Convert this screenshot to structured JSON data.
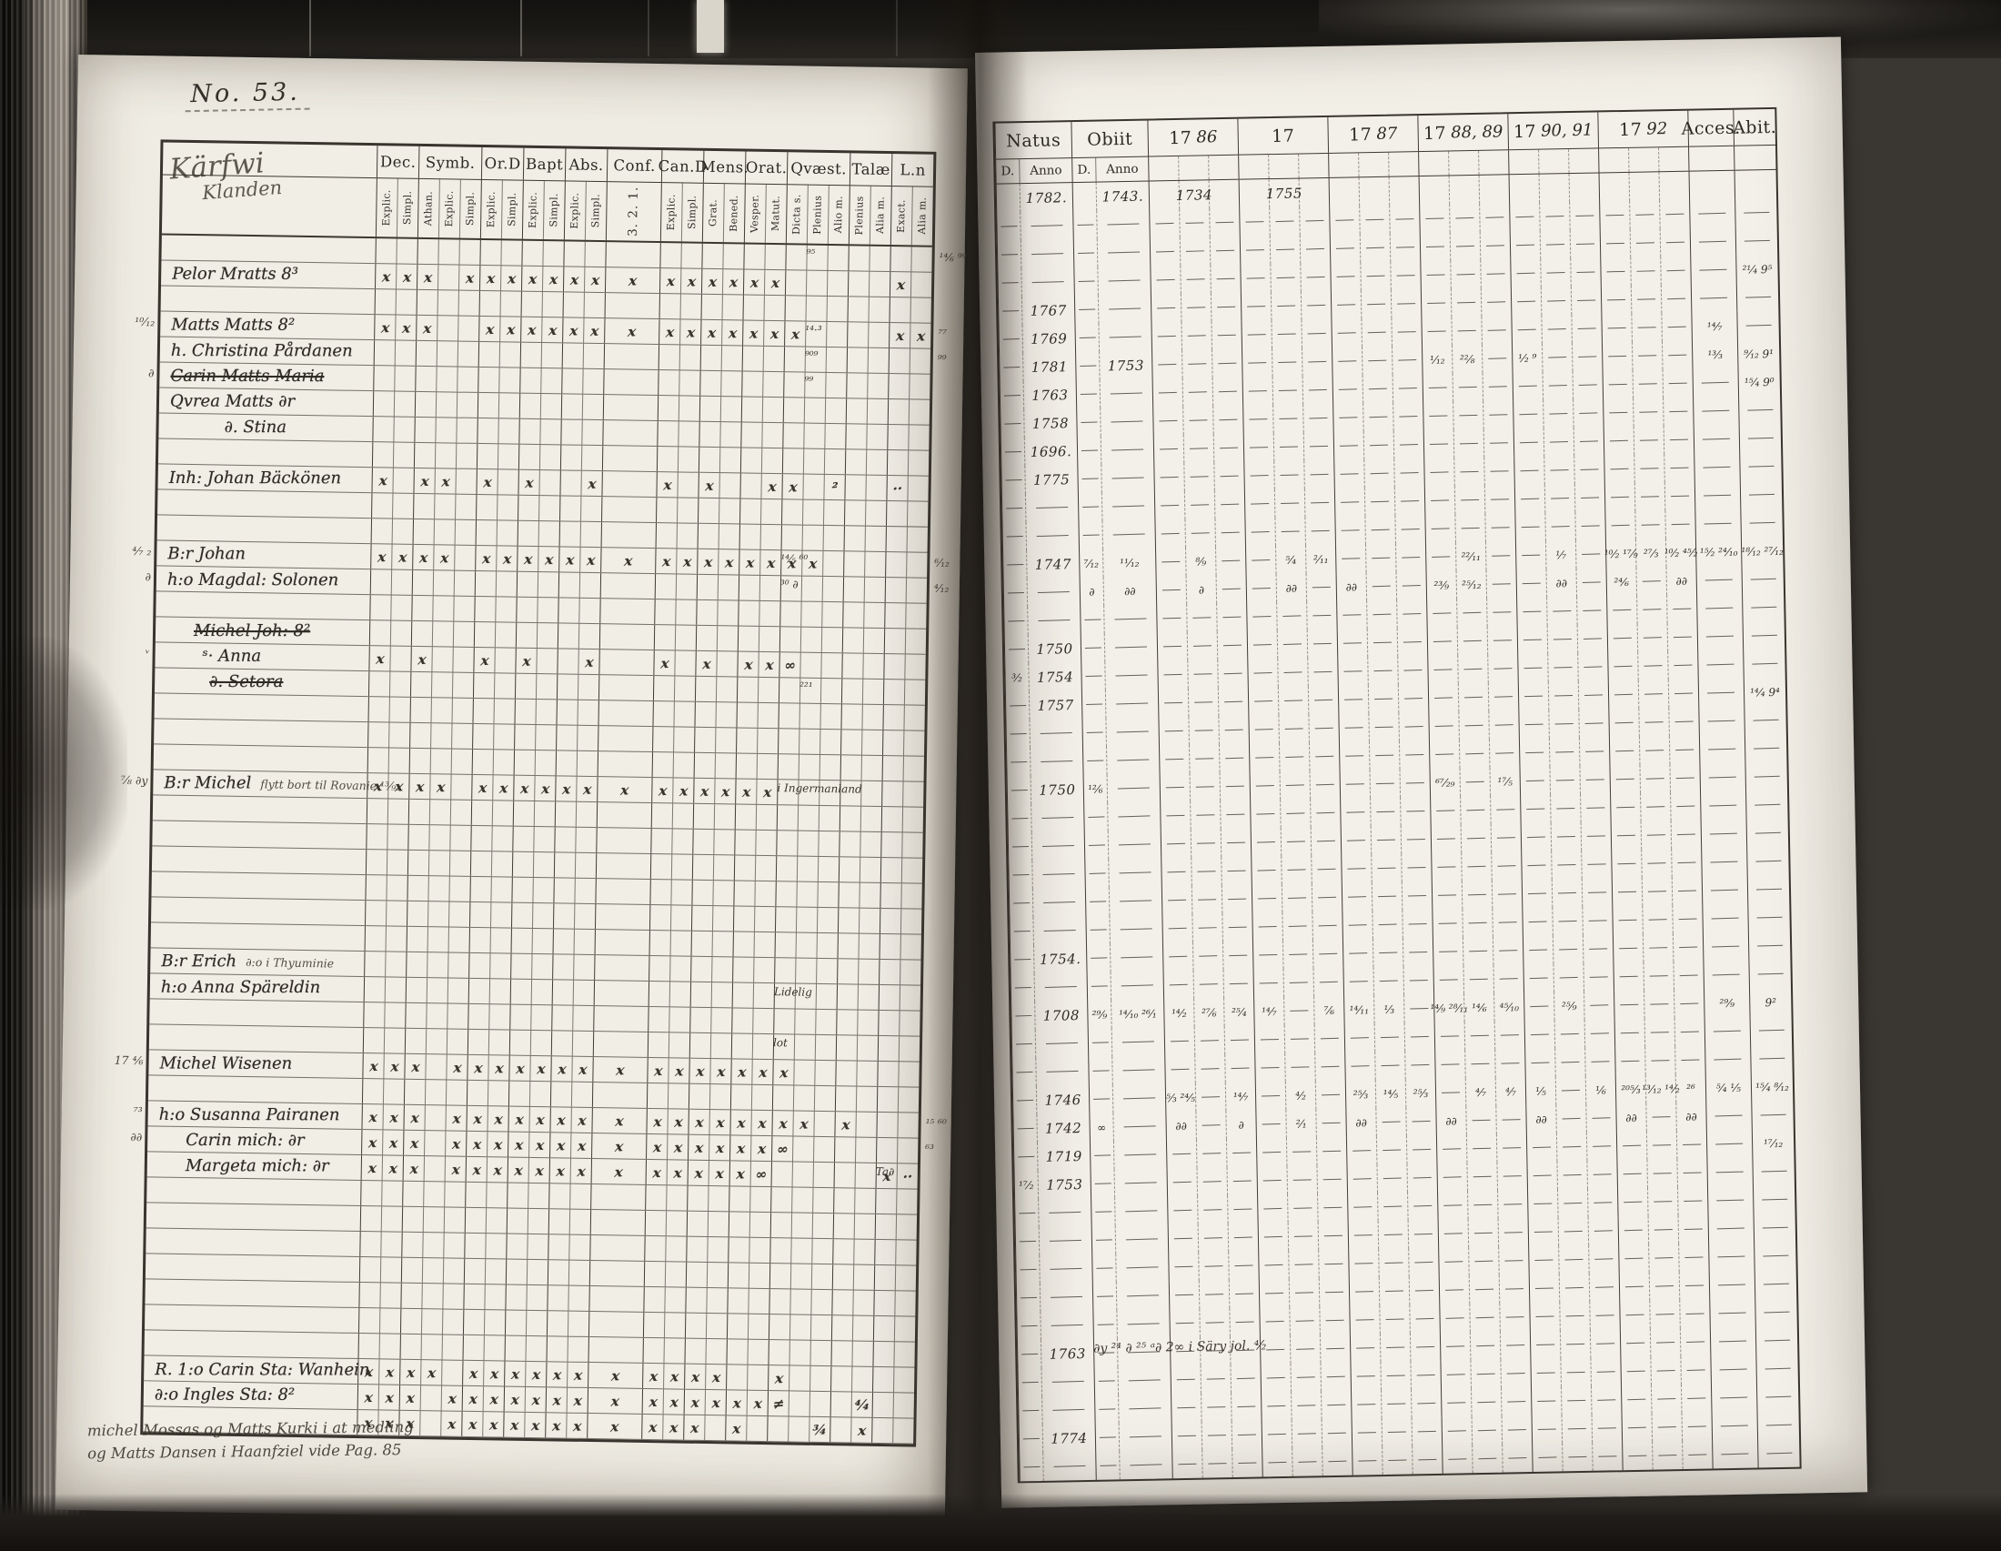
{
  "photo": {
    "description": "Microfilm photograph of an 18th-century parish communion register book opening, two pages",
    "colors": {
      "paper_left": "#efece3",
      "paper_right": "#f2efe7",
      "ink": "#2e2a24",
      "film": "#1c1a17"
    }
  },
  "page_label": "No. 53.",
  "left_page": {
    "title_line1": "Kärfwi",
    "title_line2": "Klanden",
    "col_groups": [
      {
        "label": "Dec.",
        "subs": [
          "Explic.",
          "Simpl."
        ]
      },
      {
        "label": "Symb.",
        "subs": [
          "Athan.",
          "Explic.",
          "Simpl."
        ]
      },
      {
        "label": "Or.D",
        "subs": [
          "Explic.",
          "Simpl."
        ]
      },
      {
        "label": "Bapt",
        "subs": [
          "Explic.",
          "Simpl."
        ]
      },
      {
        "label": "Abs.",
        "subs": [
          "Explic.",
          "Simpl."
        ]
      },
      {
        "label": "Conf.",
        "subs": [
          "3. 2. 1."
        ],
        "wide": true
      },
      {
        "label": "Can.D",
        "subs": [
          "Explic.",
          "Simpl."
        ]
      },
      {
        "label": "Mens.",
        "subs": [
          "Grat.",
          "Bened."
        ]
      },
      {
        "label": "Orat.",
        "subs": [
          "Vesper.",
          "Matut."
        ]
      },
      {
        "label": "Qvæst.",
        "subs": [
          "Dicta s.",
          "Plenius",
          "Alio m."
        ]
      },
      {
        "label": "Talæ",
        "subs": [
          "Plenius",
          "Alia m."
        ]
      },
      {
        "label": "L.n",
        "subs": [
          "Exact.",
          "Alia m."
        ]
      }
    ],
    "rows": [
      {
        "note": {
          "col": 19,
          "span": 2,
          "text": "⁹⁵"
        },
        "gutter": "¹⁴⁄₆ ⁹⁹"
      },
      {
        "name": "Pelor Mratts 8³",
        "marks": "x x x _ x x x x x x x x x x x x x x _ _ _ _ _ x _"
      },
      {},
      {
        "name": "Matts Matts 8²",
        "marks": "x x x _ _ x x x x x x x x x x x x x x _ _ _ _ x x",
        "margin": "¹⁰⁄₁₂",
        "note": {
          "col": 19,
          "span": 3,
          "text": "¹⁴·³"
        },
        "gutter": "⁷⁷"
      },
      {
        "name": "h. Christina Pårdanen",
        "note": {
          "col": 19,
          "span": 3,
          "text": "⁹⁰⁹"
        },
        "gutter": "⁹⁹"
      },
      {
        "name": "Carin Matts Maria",
        "strike": true,
        "margin": "∂",
        "note": {
          "col": 19,
          "span": 2,
          "text": "⁹⁹"
        }
      },
      {
        "name": "Qvrea Matts ∂r"
      },
      {
        "name": "∂. Stina",
        "indent": 60
      },
      {},
      {
        "name": "Inh: Johan Bäckönen",
        "marks": "x _ x x _ x _ x _ _ x _ x _ x _ _ x x _ ² _ _ ·· _"
      },
      {},
      {},
      {
        "name": "B:r Johan",
        "marks": "x x x x _ x x x x x x x x x x x x x x x _ _ _ _ _",
        "margin": "⁴⁄₇ ₂",
        "note": {
          "col": 18,
          "span": 2,
          "text": "¹⁴⁄₅ ⁶⁰"
        },
        "gutter": "⁶⁄₁₂"
      },
      {
        "name": "h:o Magdal: Solonen",
        "margin": "∂",
        "note": {
          "col": 18,
          "span": 2,
          "text": "³⁰ ∂"
        },
        "gutter": "⁴⁄₁₂"
      },
      {},
      {
        "name": "Michel Joh: 8²",
        "strike": true,
        "indent": 30
      },
      {
        "name": "ˢ· Anna",
        "indent": 40,
        "marks": "x _ x _ _ x _ x _ _ x _ x _ x _ x x ∞ _ _ _ _ _ _",
        "margin": "ᵛ"
      },
      {
        "name": "∂. Setora",
        "indent": 48,
        "strike": true,
        "note": {
          "col": 19,
          "span": 2,
          "text": "²²¹"
        }
      },
      {},
      {},
      {},
      {
        "name": "B:r Michel",
        "sub": "flytt bort til Rovanie ¹³⁄₉₂",
        "marks": "x x x x _ x x x x x x x x x x x x x _ _ _ _ _ _ _",
        "note": {
          "col": 18,
          "span": 4,
          "text": "i Ingermanland"
        },
        "margin": "⁷⁄₈ ∂y"
      },
      {},
      {},
      {},
      {},
      {},
      {},
      {
        "name": "B:r Erich",
        "sub": "∂:o i Thyuminie"
      },
      {
        "name": "h:o Anna Späreldin",
        "note": {
          "col": 18,
          "span": 2,
          "text": "Lidelig"
        }
      },
      {},
      {
        "note": {
          "col": 18,
          "span": 2,
          "text": "lot"
        }
      },
      {
        "name": "Michel Wisenen",
        "marks": "x x x _ x x x x x x x x x x x x x x x _ _ _ _ _ _",
        "margin": "17 ⁴⁄₆"
      },
      {},
      {
        "name": "h:o Susanna Pairanen",
        "marks": "x x x _ x x x x x x x x x x x x x x x x _ x _ _ _",
        "margin": "⁷³",
        "gutter": "¹⁵ ⁶⁰"
      },
      {
        "name": "Carin mich: ∂r",
        "indent": 30,
        "marks": "x x x _ x x x x x x x x x x x x x x ∞ _ _ _ _ _ _",
        "margin": "∂∂",
        "gutter": "⁶³"
      },
      {
        "name": "Margeta mich: ∂r",
        "indent": 30,
        "marks": "x x x _ x x x x x x x x x x x x x ∞ _ _ _ _ _ x ··",
        "note": {
          "col": 23,
          "span": 2,
          "text": "Ta∂"
        }
      },
      {},
      {},
      {},
      {},
      {},
      {},
      {},
      {
        "name": "R. 1:o Carin Sta: Wanhein",
        "marks": "x x x x _ x x x x x x x x x x x _ _ x _ _ _ _ _ _"
      },
      {
        "name": "∂:o Ingles Sta: 8²",
        "marks": "x x x _ x x x x x x x x x x x x x x ≠ _ _ _ ⁴⁄₄ _ _"
      },
      {
        "marks": "x x x _ x x x x x x x x x x x _ x _ _ _ ¾ _ x _ _"
      }
    ],
    "footnote_line1": "michel Mossas og Matts Kurki i at medling",
    "footnote_line2": "og Matts Dansen i Haanfziel vide Pag. 85"
  },
  "right_page": {
    "groups": [
      {
        "print": "Natus",
        "subs": [
          "D.",
          "Anno"
        ]
      },
      {
        "print": "Obiit",
        "subs": [
          "D.",
          "Anno"
        ]
      },
      {
        "print": "17",
        "hand": "86",
        "cols": 3
      },
      {
        "print": "17",
        "hand": "",
        "cols": 3
      },
      {
        "print": "17",
        "hand": "87",
        "cols": 3
      },
      {
        "print": "17",
        "hand": "88, 89",
        "cols": 3
      },
      {
        "print": "17",
        "hand": "90, 91",
        "cols": 3
      },
      {
        "print": "17",
        "hand": "92",
        "cols": 3
      },
      {
        "print": "Acces.",
        "cols": 1
      },
      {
        "print": "Abit.",
        "cols": 1
      }
    ],
    "rows": [
      {
        "blank": true,
        "cells": {
          "1": "1782.",
          "3": "1743.",
          "5": "1734",
          "8": "1755"
        }
      },
      {},
      {},
      {
        "cells": {
          "23": "²¹⁄₄ 9⁵"
        }
      },
      {
        "cells": {
          "1": "1767"
        }
      },
      {
        "cells": {
          "1": "1769",
          "22": "¹⁴⁄₇"
        }
      },
      {
        "cells": {
          "1": "1781",
          "3": "1753",
          "13": "¹⁄₁₂",
          "14": "²²⁄₈",
          "16": "¹⁄₂ ⁹",
          "22": "¹³⁄₃",
          "23": "⁹⁄₁₂ 9¹"
        }
      },
      {
        "cells": {
          "1": "1763",
          "23": "¹⁵⁄₄ 9⁰"
        }
      },
      {
        "cells": {
          "1": "1758"
        }
      },
      {
        "cells": {
          "1": "1696."
        }
      },
      {
        "cells": {
          "1": "1775"
        }
      },
      {},
      {},
      {
        "cells": {
          "1": "1747",
          "2": "⁷⁄₁₂",
          "3": "¹¹⁄₁₂",
          "5": "⁸⁄₉",
          "8": "⁵⁄₄",
          "9": "²⁄₁₁",
          "14": "²²⁄₁₁",
          "17": "¹⁄₇",
          "19": "¹⁰⁄₂ ¹⁷⁄₉",
          "20": "²⁷⁄₃",
          "21": "¹⁰⁄₂ ⁴⁵⁄₂",
          "22": "¹⁵⁄₂ ²⁴⁄₁₀",
          "23": "¹⁸⁄₁₂ ²⁷⁄₁₂"
        }
      },
      {
        "cells": {
          "2": "∂",
          "3": "∂∂",
          "5": "∂",
          "8": "∂∂",
          "10": "∂∂",
          "13": "²³⁄₉",
          "14": "²⁵⁄₁₂",
          "17": "∂∂",
          "19": "²⁴⁄₆",
          "21": "∂∂"
        }
      },
      {},
      {
        "cells": {
          "1": "1750"
        }
      },
      {
        "cells": {
          "0": "³⁄₂",
          "1": "1754"
        }
      },
      {
        "cells": {
          "1": "1757",
          "23": "¹⁴⁄₄ 9⁴"
        }
      },
      {},
      {},
      {
        "cells": {
          "1": "1750",
          "2": "¹²⁄₆",
          "13": "⁶⁷⁄₂₉",
          "15": "¹⁷⁄₅"
        }
      },
      {},
      {},
      {},
      {},
      {},
      {
        "cells": {
          "1": "1754."
        }
      },
      {},
      {
        "cells": {
          "1": "1708",
          "2": "²⁹⁄₉",
          "3": "¹⁴⁄₁₀ ²⁶⁄₁",
          "4": "¹⁴⁄₂",
          "5": "²⁷⁄₆",
          "6": "²⁵⁄₄",
          "7": "¹⁴⁄₇",
          "9": "⁷⁄₆",
          "10": "¹⁴⁄₁₁",
          "11": "¹⁄₃",
          "13": "¹⁴⁄₉ ²⁸⁄₁₁",
          "14": "¹⁴⁄₆",
          "15": "⁴⁵⁄₁₀",
          "17": "²⁵⁄₉",
          "22": "²⁹⁄₉",
          "23": "9²"
        }
      },
      {},
      {},
      {
        "cells": {
          "1": "1746",
          "4": "⁵⁄₃ ²⁴⁄₅",
          "6": "¹⁴⁄₇",
          "8": "⁴⁄₂",
          "10": "²⁵⁄₃",
          "11": "¹⁴⁄₅",
          "12": "²⁵⁄₃",
          "14": "⁴⁄₇",
          "15": "⁴⁄₇",
          "16": "¹⁄₅",
          "18": "¹⁄₆",
          "19": "²⁰⁵⁄₃",
          "20": "¹³⁄₁₂ ¹⁴⁄₂",
          "21": "²⁶",
          "22": "⁵⁄₄ ¹⁄₅",
          "23": "¹⁵⁄₄ ⁸⁄₁₂"
        }
      },
      {
        "cells": {
          "1": "1742",
          "2": "∞",
          "4": "∂∂",
          "6": "∂",
          "8": "²⁄₁",
          "10": "∂∂",
          "13": "∂∂",
          "16": "∂∂",
          "19": "∂∂",
          "21": "∂∂"
        }
      },
      {
        "cells": {
          "1": "1719",
          "23": "¹⁷⁄₁₂"
        }
      },
      {
        "cells": {
          "0": "¹⁷⁄₂",
          "1": "1753"
        }
      },
      {},
      {},
      {},
      {},
      {},
      {
        "cells": {
          "1": "1763"
        },
        "note": {
          "col": 2,
          "span": 14,
          "text": "∂y ²⁴ ∂ ²⁵ ᵃ∂ 2∞ i Säry jol. ⁴⁄₂"
        }
      },
      {},
      {},
      {
        "cells": {
          "1": "1774"
        }
      },
      {}
    ]
  }
}
